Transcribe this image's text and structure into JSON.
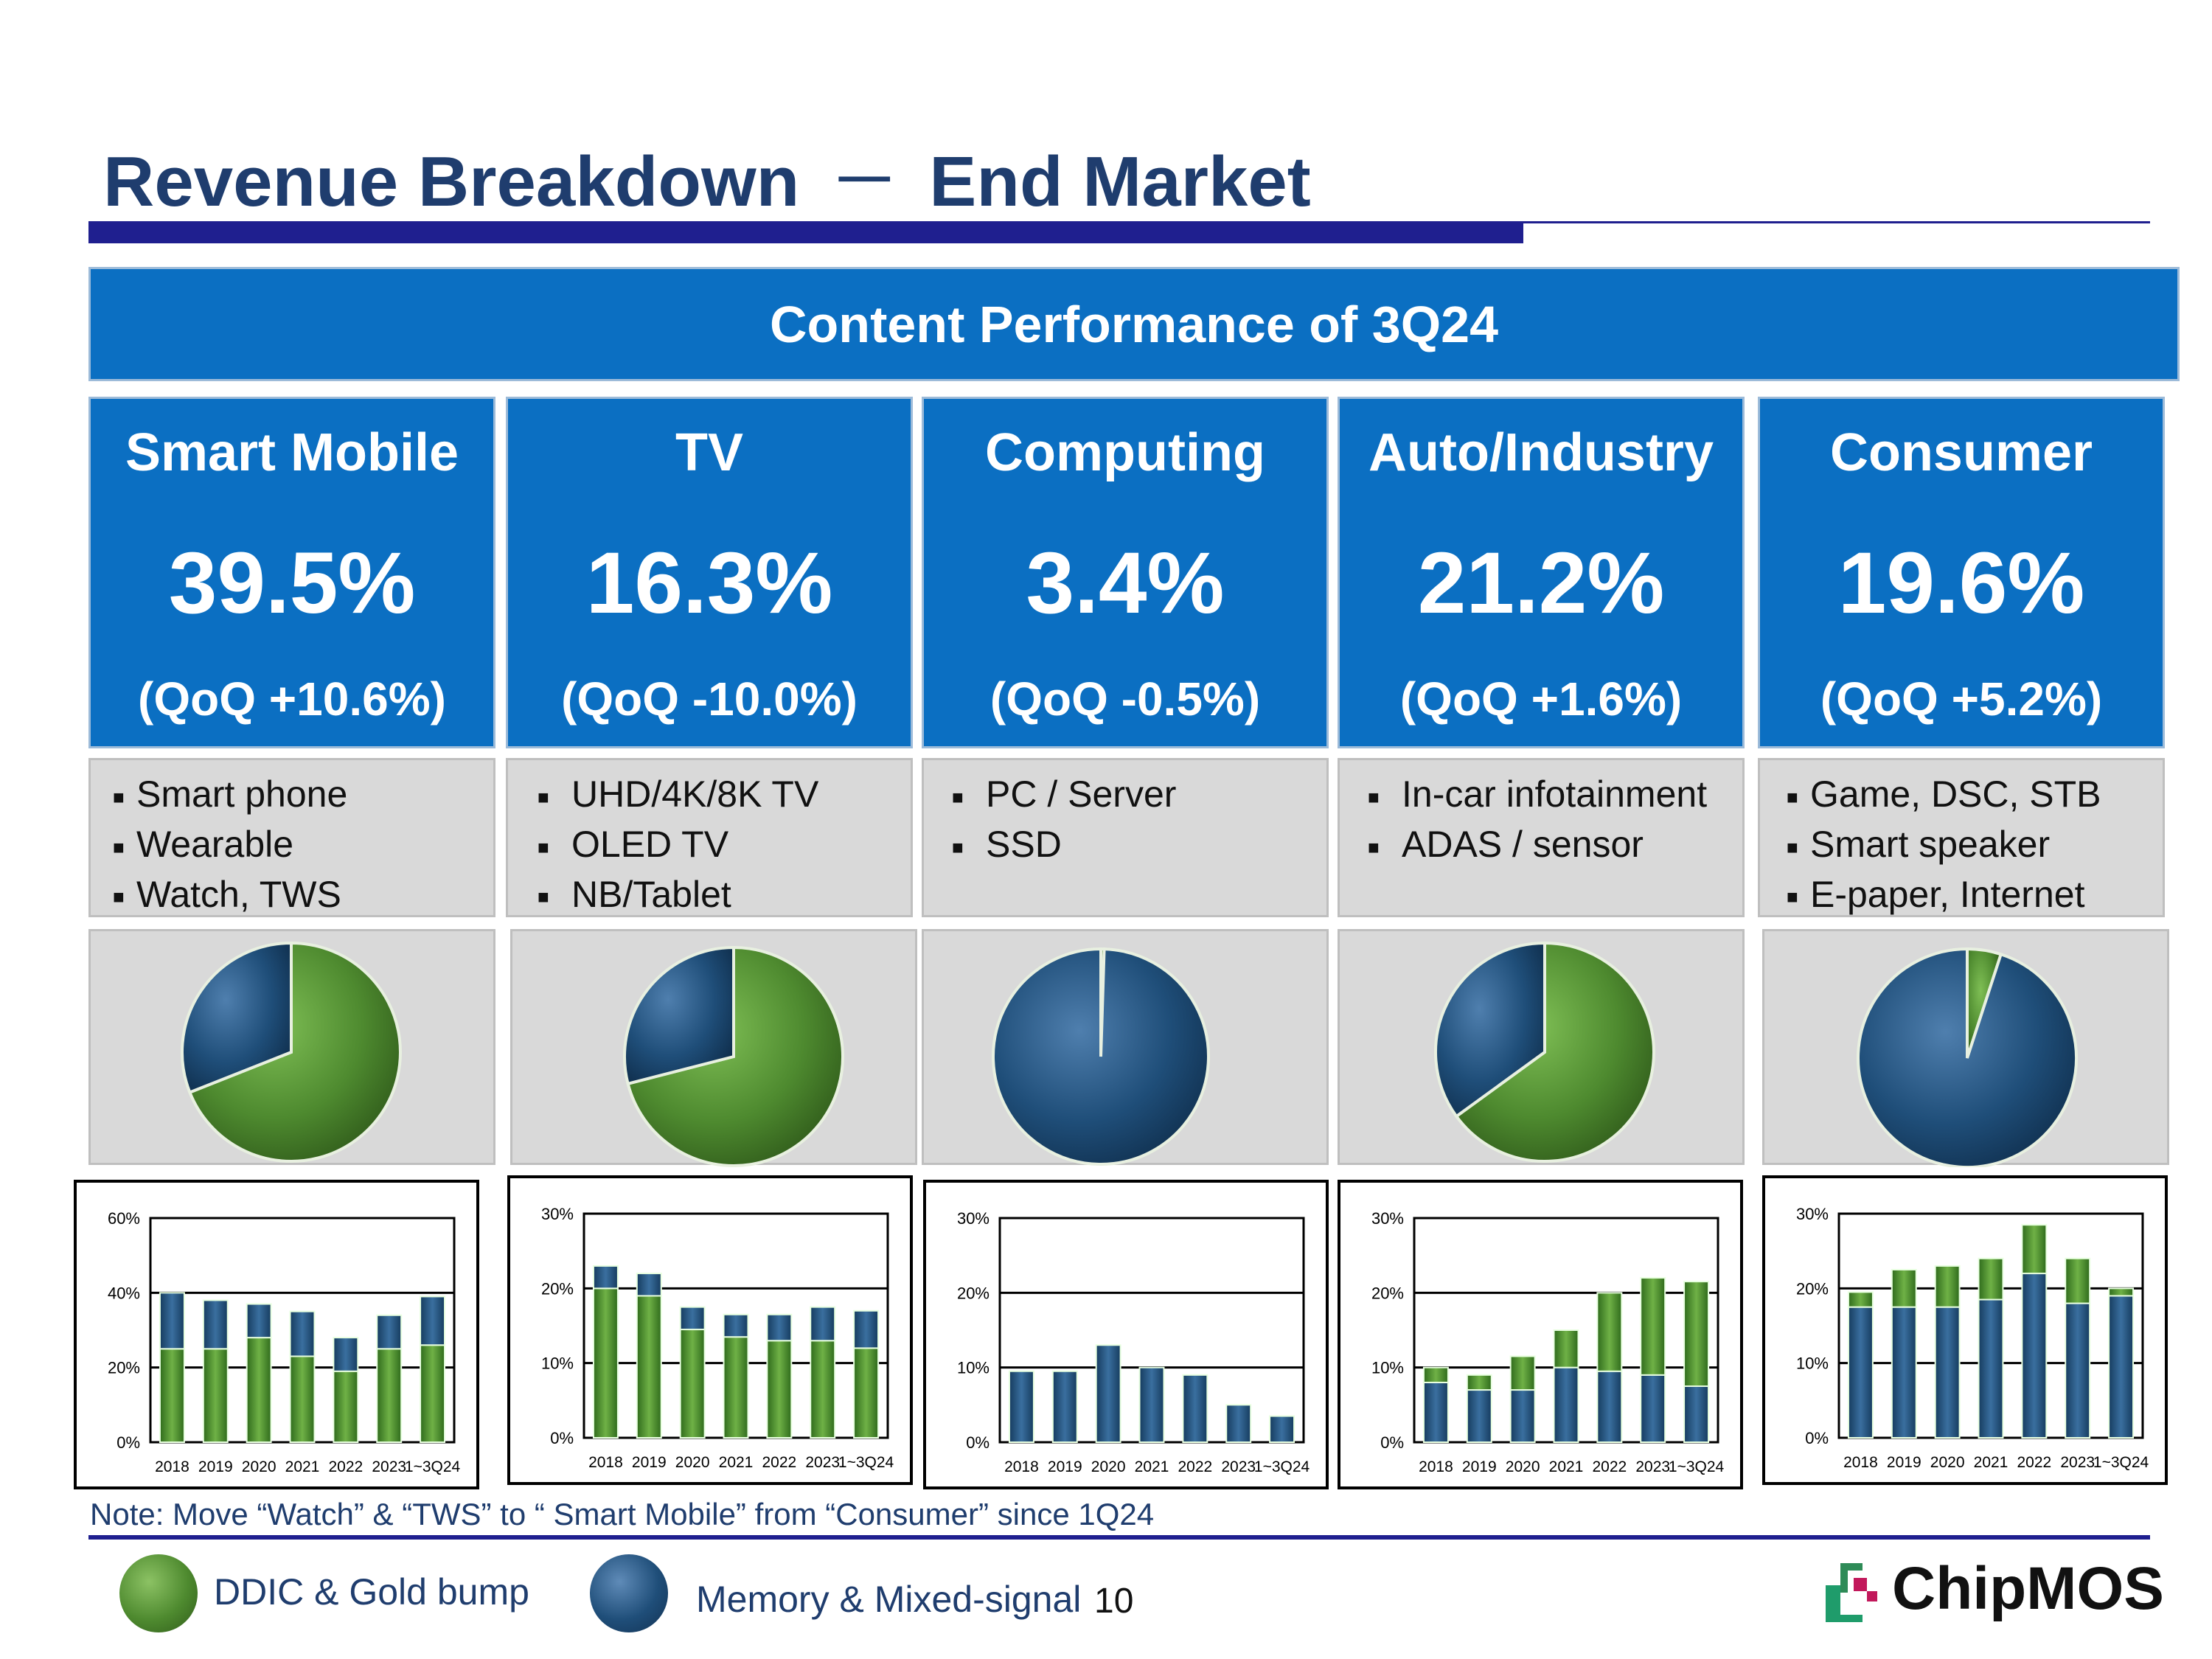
{
  "title": {
    "left": "Revenue Breakdown",
    "dash": "－",
    "right": "End Market"
  },
  "banner": "Content Performance of 3Q24",
  "segments": [
    {
      "name": "Smart Mobile",
      "pct": "39.5%",
      "qoq": "(QoQ +10.6%)",
      "bullets": [
        "Smart phone",
        "Wearable",
        "Watch, TWS"
      ]
    },
    {
      "name": "TV",
      "pct": "16.3%",
      "qoq": "(QoQ -10.0%)",
      "bullets": [
        "UHD/4K/8K TV",
        "OLED TV",
        "NB/Tablet"
      ]
    },
    {
      "name": "Computing",
      "pct": "3.4%",
      "qoq": "(QoQ -0.5%)",
      "bullets": [
        "PC / Server",
        "SSD"
      ]
    },
    {
      "name": "Auto/Industry",
      "pct": "21.2%",
      "qoq": "(QoQ +1.6%)",
      "bullets": [
        "In-car infotainment",
        "ADAS / sensor"
      ]
    },
    {
      "name": "Consumer",
      "pct": "19.6%",
      "qoq": "(QoQ +5.2%)",
      "bullets": [
        "Game, DSC, STB",
        "Smart speaker",
        "E-paper, Internet"
      ]
    }
  ],
  "colors": {
    "green": "#4e8a2f",
    "blue": "#1f4e79",
    "brand": "#0b6fc2",
    "navy": "#1f1f8f"
  },
  "chart_data": [
    {
      "type": "pie",
      "segment": "Smart Mobile",
      "series": [
        {
          "name": "DDIC & Gold bump",
          "value": 69
        },
        {
          "name": "Memory & Mixed-signal",
          "value": 31
        }
      ]
    },
    {
      "type": "pie",
      "segment": "TV",
      "series": [
        {
          "name": "DDIC & Gold bump",
          "value": 71
        },
        {
          "name": "Memory & Mixed-signal",
          "value": 29
        }
      ]
    },
    {
      "type": "pie",
      "segment": "Computing",
      "series": [
        {
          "name": "DDIC & Gold bump",
          "value": 0.5
        },
        {
          "name": "Memory & Mixed-signal",
          "value": 99.5
        }
      ]
    },
    {
      "type": "pie",
      "segment": "Auto/Industry",
      "series": [
        {
          "name": "DDIC & Gold bump",
          "value": 65
        },
        {
          "name": "Memory & Mixed-signal",
          "value": 35
        }
      ]
    },
    {
      "type": "pie",
      "segment": "Consumer",
      "series": [
        {
          "name": "DDIC & Gold bump",
          "value": 5
        },
        {
          "name": "Memory & Mixed-signal",
          "value": 95
        }
      ]
    },
    {
      "type": "bar",
      "stacked": true,
      "segment": "Smart Mobile",
      "categories": [
        "2018",
        "2019",
        "2020",
        "2021",
        "2022",
        "2023",
        "1~3Q24"
      ],
      "yticks": [
        "0%",
        "20%",
        "40%",
        "60%"
      ],
      "ylim": [
        0,
        60
      ],
      "series": [
        {
          "name": "DDIC & Gold bump",
          "values": [
            25,
            25,
            28,
            23,
            19,
            25,
            26
          ]
        },
        {
          "name": "Memory & Mixed-signal",
          "values": [
            15,
            13,
            9,
            12,
            9,
            9,
            13
          ]
        }
      ]
    },
    {
      "type": "bar",
      "stacked": true,
      "segment": "TV",
      "categories": [
        "2018",
        "2019",
        "2020",
        "2021",
        "2022",
        "2023",
        "1~3Q24"
      ],
      "yticks": [
        "0%",
        "10%",
        "20%",
        "30%"
      ],
      "ylim": [
        0,
        30
      ],
      "series": [
        {
          "name": "DDIC & Gold bump",
          "values": [
            20,
            19,
            14.5,
            13.5,
            13,
            13,
            12
          ]
        },
        {
          "name": "Memory & Mixed-signal",
          "values": [
            3,
            3,
            3,
            3,
            3.5,
            4.5,
            5
          ]
        }
      ]
    },
    {
      "type": "bar",
      "stacked": true,
      "segment": "Computing",
      "categories": [
        "2018",
        "2019",
        "2020",
        "2021",
        "2022",
        "2023",
        "1~3Q24"
      ],
      "yticks": [
        "0%",
        "10%",
        "20%",
        "30%"
      ],
      "ylim": [
        0,
        30
      ],
      "series": [
        {
          "name": "DDIC & Gold bump",
          "values": [
            0,
            0,
            0,
            0,
            0,
            0,
            0
          ]
        },
        {
          "name": "Memory & Mixed-signal",
          "values": [
            9.5,
            9.5,
            13,
            10,
            9,
            5,
            3.5
          ]
        }
      ]
    },
    {
      "type": "bar",
      "stacked": true,
      "segment": "Auto/Industry",
      "categories": [
        "2018",
        "2019",
        "2020",
        "2021",
        "2022",
        "2023",
        "1~3Q24"
      ],
      "yticks": [
        "0%",
        "10%",
        "20%",
        "30%"
      ],
      "ylim": [
        0,
        30
      ],
      "series": [
        {
          "name": "Memory & Mixed-signal",
          "values": [
            8,
            7,
            7,
            10,
            9.5,
            9,
            7.5
          ]
        },
        {
          "name": "DDIC & Gold bump",
          "values": [
            2,
            2,
            4.5,
            5,
            10.5,
            13,
            14
          ]
        }
      ]
    },
    {
      "type": "bar",
      "stacked": true,
      "segment": "Consumer",
      "categories": [
        "2018",
        "2019",
        "2020",
        "2021",
        "2022",
        "2023",
        "1~3Q24"
      ],
      "yticks": [
        "0%",
        "10%",
        "20%",
        "30%"
      ],
      "ylim": [
        0,
        30
      ],
      "series": [
        {
          "name": "Memory & Mixed-signal",
          "values": [
            17.5,
            17.5,
            17.5,
            18.5,
            22,
            18,
            19
          ]
        },
        {
          "name": "DDIC & Gold bump",
          "values": [
            2,
            5,
            5.5,
            5.5,
            6.5,
            6,
            1
          ]
        }
      ]
    }
  ],
  "note": "Note: Move “Watch” & “TWS” to “ Smart Mobile” from “Consumer” since 1Q24",
  "legend": [
    {
      "label": "DDIC & Gold bump"
    },
    {
      "label": "Memory & Mixed-signal"
    }
  ],
  "page_number": "10",
  "logo": "ChipMOS"
}
